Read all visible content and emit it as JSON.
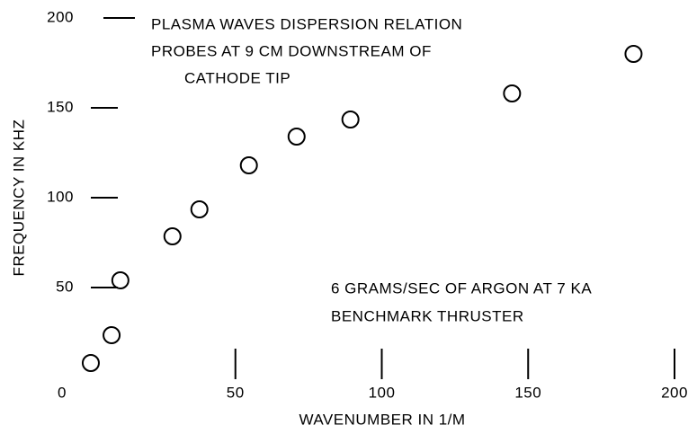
{
  "chart_data": {
    "type": "scatter",
    "title_lines": [
      "PLASMA WAVES DISPERSION RELATION",
      "PROBES AT 9 CM DOWNSTREAM OF",
      "CATHODE TIP"
    ],
    "annotation_lines": [
      "6 GRAMS/SEC OF ARGON AT 7 KA",
      "BENCHMARK THRUSTER"
    ],
    "x_label": "WAVENUMBER IN 1/M",
    "y_label": "FREQUENCY IN KHZ",
    "x": [
      0.6,
      7.7,
      10.7,
      28.5,
      37.7,
      54.6,
      70.9,
      89.3,
      144.5,
      186
    ],
    "values": [
      8,
      23.5,
      54,
      78.5,
      93.5,
      118,
      134,
      143.5,
      158,
      180
    ],
    "color": "#000000",
    "xlim": [
      0,
      200
    ],
    "xticks": [
      0,
      50,
      100,
      150,
      200
    ],
    "ylim": [
      0,
      200
    ],
    "yticks": [
      50,
      100,
      150,
      200
    ],
    "grid": false
  }
}
